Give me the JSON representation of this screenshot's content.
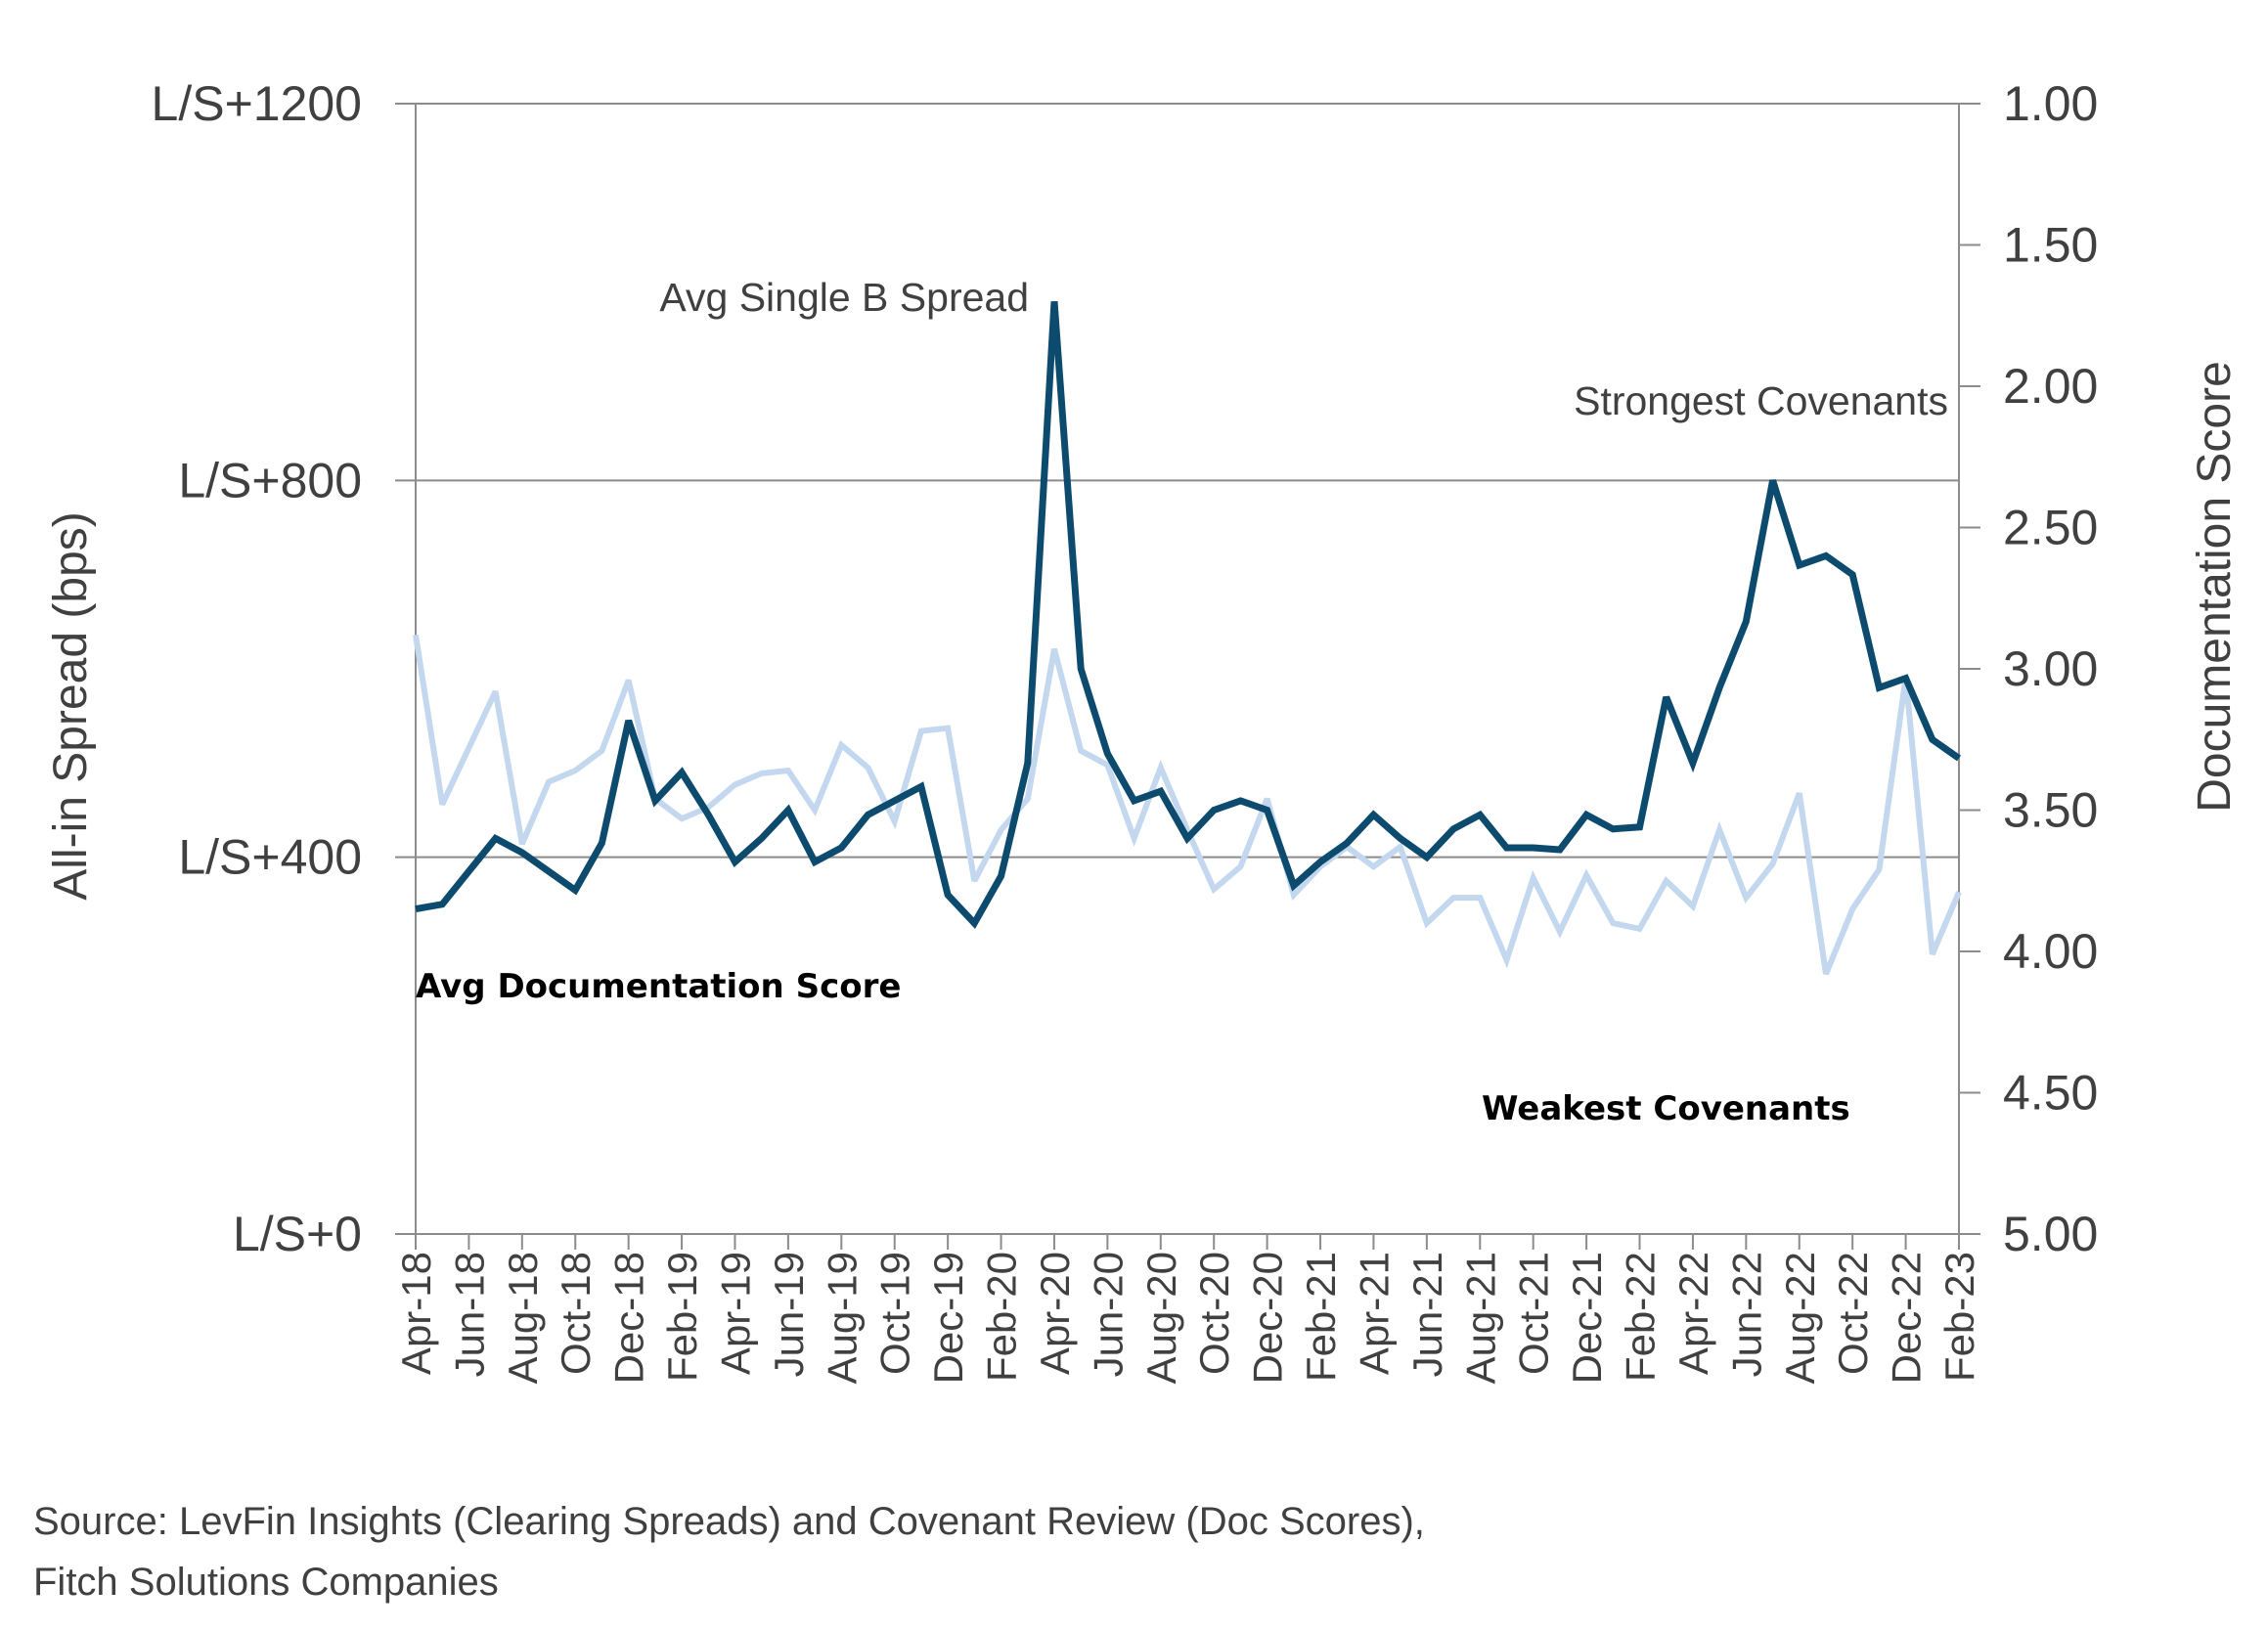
{
  "chart_data": {
    "type": "line",
    "x": [
      "Apr-18",
      "May-18",
      "Jun-18",
      "Jul-18",
      "Aug-18",
      "Sep-18",
      "Oct-18",
      "Nov-18",
      "Dec-18",
      "Jan-19",
      "Feb-19",
      "Mar-19",
      "Apr-19",
      "May-19",
      "Jun-19",
      "Jul-19",
      "Aug-19",
      "Sep-19",
      "Oct-19",
      "Nov-19",
      "Dec-19",
      "Jan-20",
      "Feb-20",
      "Mar-20",
      "Apr-20",
      "May-20",
      "Jun-20",
      "Jul-20",
      "Aug-20",
      "Sep-20",
      "Oct-20",
      "Nov-20",
      "Dec-20",
      "Jan-21",
      "Feb-21",
      "Mar-21",
      "Apr-21",
      "May-21",
      "Jun-21",
      "Jul-21",
      "Aug-21",
      "Sep-21",
      "Oct-21",
      "Nov-21",
      "Dec-21",
      "Jan-22",
      "Feb-22",
      "Mar-22",
      "Apr-22",
      "May-22",
      "Jun-22",
      "Jul-22",
      "Aug-22",
      "Sep-22",
      "Oct-22",
      "Nov-22",
      "Dec-22",
      "Jan-23",
      "Feb-23"
    ],
    "x_tick_labels": [
      "Apr-18",
      "Jun-18",
      "Aug-18",
      "Oct-18",
      "Dec-18",
      "Feb-19",
      "Apr-19",
      "Jun-19",
      "Aug-19",
      "Oct-19",
      "Dec-19",
      "Feb-20",
      "Apr-20",
      "Jun-20",
      "Aug-20",
      "Oct-20",
      "Dec-20",
      "Feb-21",
      "Apr-21",
      "Jun-21",
      "Aug-21",
      "Oct-21",
      "Dec-21",
      "Feb-22",
      "Apr-22",
      "Jun-22",
      "Aug-22",
      "Oct-22",
      "Dec-22",
      "Feb-23"
    ],
    "series": [
      {
        "axis": "left",
        "color": "#0d4b6e",
        "values": [
          345,
          350,
          385,
          420,
          405,
          385,
          365,
          415,
          545,
          460,
          490,
          445,
          395,
          420,
          450,
          395,
          410,
          445,
          460,
          475,
          360,
          330,
          380,
          500,
          990,
          600,
          510,
          460,
          470,
          420,
          450,
          460,
          450,
          370,
          395,
          415,
          445,
          420,
          400,
          430,
          445,
          410,
          410,
          408,
          445,
          430,
          432,
          570,
          500,
          580,
          650,
          800,
          710,
          720,
          700,
          580,
          590,
          525,
          505
        ]
      },
      {
        "axis": "right",
        "color": "#c3d7ee",
        "values": [
          2.88,
          3.48,
          3.28,
          3.08,
          3.62,
          3.4,
          3.36,
          3.29,
          3.04,
          3.46,
          3.53,
          3.49,
          3.41,
          3.37,
          3.36,
          3.5,
          3.27,
          3.35,
          3.54,
          3.22,
          3.21,
          3.75,
          3.57,
          3.46,
          2.93,
          3.29,
          3.34,
          3.6,
          3.35,
          3.57,
          3.78,
          3.7,
          3.46,
          3.8,
          3.7,
          3.63,
          3.7,
          3.63,
          3.9,
          3.81,
          3.81,
          4.03,
          3.74,
          3.93,
          3.73,
          3.9,
          3.92,
          3.75,
          3.84,
          3.57,
          3.81,
          3.69,
          3.44,
          4.08,
          3.85,
          3.71,
          3.03,
          4.01,
          3.79
        ]
      }
    ],
    "left_axis": {
      "label": "All-in Spread (bps)",
      "ylim": [
        0,
        1200
      ],
      "ticks": [
        "L/S+0",
        "L/S+400",
        "L/S+800",
        "L/S+1200"
      ]
    },
    "right_axis": {
      "label": "Documentation Score",
      "ylim": [
        5.0,
        1.0
      ],
      "inverted": true,
      "ticks": [
        "1.00",
        "1.50",
        "2.00",
        "2.50",
        "3.00",
        "3.50",
        "4.00",
        "4.50",
        "5.00"
      ]
    },
    "annotations": {
      "single_b": "Avg Single B Spread",
      "strongest": "Strongest Covenants",
      "doc_score": "Avg Documentation Score",
      "weakest": "Weakest Covenants"
    },
    "gridlines": "horizontal at left-axis ticks"
  },
  "source": {
    "line1": "Source: LevFin Insights (Clearing Spreads) and Covenant Review (Doc Scores),",
    "line2": "Fitch Solutions Companies"
  }
}
